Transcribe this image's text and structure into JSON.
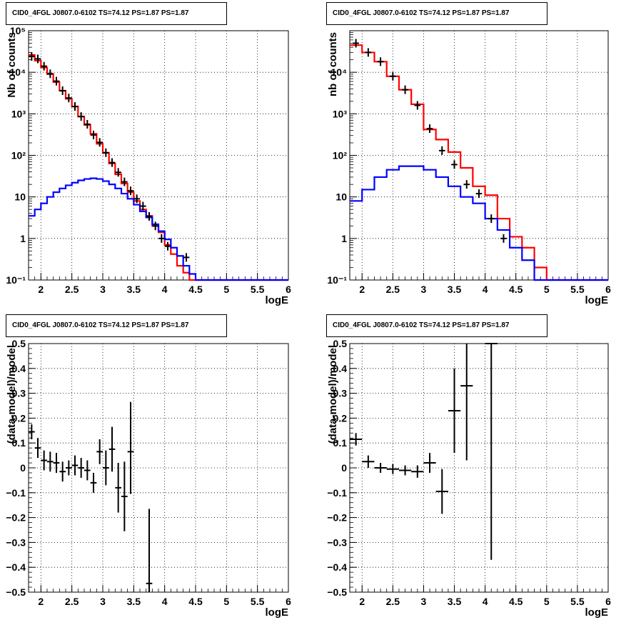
{
  "chart_data": [
    {
      "type": "histogram",
      "title": "CID0_4FGL J0807.0-6102 TS=74.12 PS=1.87 PS=1.87",
      "xlabel": "logE",
      "ylabel": "Nb of counts",
      "xlim": [
        1.8,
        6.0
      ],
      "ylim": [
        0.1,
        100000
      ],
      "yscale": "log",
      "grid": true,
      "x_ticks": [
        2,
        2.5,
        3,
        3.5,
        4,
        4.5,
        5,
        5.5,
        6
      ],
      "x_tick_labels": [
        "2",
        "2.5",
        "3",
        "3.5",
        "4",
        "4.5",
        "5",
        "5.5",
        "6"
      ],
      "y_ticks": [
        0.1,
        1,
        10,
        100,
        1000,
        10000,
        100000
      ],
      "y_tick_labels": [
        "10⁻¹",
        "1",
        "10",
        "10²",
        "10³",
        "10⁴",
        "10⁵"
      ],
      "series": [
        {
          "color": "#ff0000",
          "kind": "step",
          "x": [
            1.8,
            1.9,
            2.0,
            2.1,
            2.2,
            2.3,
            2.4,
            2.5,
            2.6,
            2.7,
            2.8,
            2.9,
            3.0,
            3.1,
            3.2,
            3.3,
            3.4,
            3.5,
            3.6,
            3.7,
            3.8,
            3.9,
            4.0,
            4.1,
            4.2,
            4.3,
            4.4,
            4.5,
            4.6,
            4.7,
            4.8,
            4.9,
            5.0,
            5.1,
            5.2,
            5.3,
            5.4,
            5.5,
            5.6,
            5.7,
            5.8,
            5.9
          ],
          "values": [
            26000,
            19000,
            13000,
            9000,
            5800,
            3600,
            2300,
            1500,
            860,
            540,
            330,
            190,
            115,
            64,
            35,
            21,
            13,
            8,
            5,
            3.5,
            2,
            1.4,
            0.7,
            0.42,
            0.22,
            0.15,
            0.1,
            0.1,
            0.1,
            0.1,
            0.1,
            0.1,
            0.1,
            0.1,
            0.1,
            0.1,
            0.1,
            0.1,
            0.1,
            0.1,
            0.1,
            0.1
          ]
        },
        {
          "color": "#0000ff",
          "kind": "step",
          "x": [
            1.8,
            1.9,
            2.0,
            2.1,
            2.2,
            2.3,
            2.4,
            2.5,
            2.6,
            2.7,
            2.8,
            2.9,
            3.0,
            3.1,
            3.2,
            3.3,
            3.4,
            3.5,
            3.6,
            3.7,
            3.8,
            3.9,
            4.0,
            4.1,
            4.2,
            4.3,
            4.4,
            4.5,
            4.6,
            4.7,
            4.8,
            4.9,
            5.0,
            5.1,
            5.2,
            5.3,
            5.4,
            5.5,
            5.6,
            5.7,
            5.8,
            5.9
          ],
          "values": [
            3.5,
            5,
            7,
            10,
            13,
            16,
            19,
            22,
            25,
            27,
            28,
            27,
            24,
            20,
            16,
            12,
            9,
            6.5,
            4.5,
            3.2,
            2.2,
            1.5,
            0.95,
            0.6,
            0.38,
            0.22,
            0.14,
            0.1,
            0.1,
            0.1,
            0.1,
            0.1,
            0.1,
            0.1,
            0.1,
            0.1,
            0.1,
            0.1,
            0.1,
            0.1,
            0.1,
            0.1
          ]
        },
        {
          "color": "#000000",
          "kind": "points",
          "x": [
            1.85,
            1.95,
            2.05,
            2.15,
            2.25,
            2.35,
            2.45,
            2.55,
            2.65,
            2.75,
            2.85,
            2.95,
            3.05,
            3.15,
            3.25,
            3.35,
            3.45,
            3.55,
            3.65,
            3.75,
            3.85,
            3.95,
            4.05,
            4.35
          ],
          "values": [
            24000,
            21000,
            14000,
            9200,
            6100,
            3600,
            2400,
            1500,
            860,
            560,
            310,
            205,
            116,
            67,
            39,
            23,
            14,
            9,
            6,
            3.4,
            2,
            1,
            0.65,
            0.35
          ],
          "yerr_lo": [
            0,
            0,
            0,
            0,
            0,
            0,
            0,
            0,
            0,
            0,
            0,
            0,
            0,
            0,
            0,
            0,
            0,
            0,
            0,
            0,
            0,
            0,
            0,
            0
          ],
          "yerr_hi": [
            0,
            0,
            0,
            0,
            0,
            0,
            0,
            0,
            0,
            0,
            0,
            0,
            0,
            0,
            0,
            0,
            0,
            0,
            0,
            0,
            0,
            0,
            0,
            0
          ]
        }
      ]
    },
    {
      "type": "histogram",
      "title": "CID0_4FGL J0807.0-6102 TS=74.12 PS=1.87 PS=1.87",
      "xlabel": "logE",
      "ylabel": "nb of counts",
      "xlim": [
        1.8,
        6.0
      ],
      "ylim": [
        0.1,
        100000
      ],
      "yscale": "log",
      "grid": true,
      "x_ticks": [
        2,
        2.5,
        3,
        3.5,
        4,
        4.5,
        5,
        5.5,
        6
      ],
      "x_tick_labels": [
        "2",
        "2.5",
        "3",
        "3.5",
        "4",
        "4.5",
        "5",
        "5.5",
        "6"
      ],
      "y_ticks": [
        0.1,
        1,
        10,
        100,
        1000,
        10000
      ],
      "y_tick_labels": [
        "10⁻¹",
        "1",
        "10",
        "10²",
        "10³",
        "10⁴"
      ],
      "series": [
        {
          "color": "#ff0000",
          "kind": "step",
          "x": [
            1.8,
            2.0,
            2.2,
            2.4,
            2.6,
            2.8,
            3.0,
            3.2,
            3.4,
            3.6,
            3.8,
            4.0,
            4.2,
            4.4,
            4.6,
            4.8,
            5.0,
            5.2,
            5.4,
            5.6,
            5.8
          ],
          "values": [
            45000,
            30000,
            18000,
            8000,
            3800,
            1700,
            420,
            240,
            120,
            50,
            18,
            11,
            3,
            1.1,
            0.6,
            0.2,
            0.1,
            0.1,
            0.1,
            0.1,
            0.1
          ]
        },
        {
          "color": "#0000ff",
          "kind": "step",
          "x": [
            1.8,
            2.0,
            2.2,
            2.4,
            2.6,
            2.8,
            3.0,
            3.2,
            3.4,
            3.6,
            3.8,
            4.0,
            4.2,
            4.4,
            4.6,
            4.8,
            5.0,
            5.2,
            5.4,
            5.6,
            5.8
          ],
          "values": [
            8,
            15,
            30,
            45,
            55,
            55,
            45,
            30,
            18,
            10,
            7,
            3,
            1.6,
            0.6,
            0.3,
            0.1,
            0.1,
            0.1,
            0.1,
            0.1,
            0.1
          ]
        },
        {
          "color": "#000000",
          "kind": "points",
          "x": [
            1.9,
            2.1,
            2.3,
            2.5,
            2.7,
            2.9,
            3.1,
            3.3,
            3.5,
            3.7,
            3.9,
            4.1,
            4.3
          ],
          "values": [
            50000,
            30000,
            18000,
            8000,
            3800,
            1600,
            440,
            130,
            60,
            20,
            12,
            3,
            1
          ],
          "yerr_lo": [
            0,
            0,
            0,
            0,
            0,
            0,
            0,
            0,
            0,
            0,
            0,
            0,
            0
          ],
          "yerr_hi": [
            0,
            0,
            0,
            0,
            0,
            0,
            0,
            0,
            0,
            0,
            0,
            0,
            0
          ]
        }
      ]
    },
    {
      "type": "scatter",
      "title": "CID0_4FGL J0807.0-6102 TS=74.12 PS=1.87 PS=1.87",
      "xlabel": "logE",
      "ylabel": "(data-model)/model",
      "xlim": [
        1.8,
        6.0
      ],
      "ylim": [
        -0.5,
        0.5
      ],
      "yscale": "linear",
      "grid": true,
      "x_ticks": [
        2,
        2.5,
        3,
        3.5,
        4,
        4.5,
        5,
        5.5,
        6
      ],
      "x_tick_labels": [
        "2",
        "2.5",
        "3",
        "3.5",
        "4",
        "4.5",
        "5",
        "5.5",
        "6"
      ],
      "y_ticks": [
        -0.5,
        -0.4,
        -0.3,
        -0.2,
        -0.1,
        0,
        0.1,
        0.2,
        0.3,
        0.4,
        0.5
      ],
      "y_tick_labels": [
        "−0.5",
        "−0.4",
        "−0.3",
        "−0.2",
        "−0.1",
        "0",
        "0.1",
        "0.2",
        "0.3",
        "0.4",
        "0.5"
      ],
      "series": [
        {
          "color": "#000000",
          "kind": "points",
          "x": [
            1.85,
            1.95,
            2.05,
            2.15,
            2.25,
            2.35,
            2.45,
            2.55,
            2.65,
            2.75,
            2.85,
            2.95,
            3.05,
            3.15,
            3.25,
            3.35,
            3.45,
            3.75
          ],
          "values": [
            0.145,
            0.08,
            0.03,
            0.025,
            0.02,
            -0.015,
            0.0,
            0.01,
            0.0,
            -0.01,
            -0.06,
            0.065,
            0.0,
            0.075,
            -0.08,
            -0.115,
            0.065,
            -0.465
          ],
          "yerr_lo": [
            0.03,
            0.04,
            0.04,
            0.04,
            0.04,
            0.04,
            0.03,
            0.04,
            0.04,
            0.04,
            0.04,
            0.05,
            0.07,
            0.09,
            0.1,
            0.14,
            0.17,
            0.3
          ],
          "yerr_hi": [
            0.03,
            0.04,
            0.04,
            0.04,
            0.04,
            0.04,
            0.03,
            0.04,
            0.04,
            0.04,
            0.04,
            0.05,
            0.07,
            0.09,
            0.1,
            0.14,
            0.2,
            0.3
          ],
          "xerr": 0.05
        }
      ]
    },
    {
      "type": "scatter",
      "title": "CID0_4FGL J0807.0-6102 TS=74.12 PS=1.87 PS=1.87",
      "xlabel": "logE",
      "ylabel": "(data-model)/model",
      "xlim": [
        1.8,
        6.0
      ],
      "ylim": [
        -0.5,
        0.5
      ],
      "yscale": "linear",
      "grid": true,
      "x_ticks": [
        2,
        2.5,
        3,
        3.5,
        4,
        4.5,
        5,
        5.5,
        6
      ],
      "x_tick_labels": [
        "2",
        "2.5",
        "3",
        "3.5",
        "4",
        "4.5",
        "5",
        "5.5",
        "6"
      ],
      "y_ticks": [
        -0.5,
        -0.4,
        -0.3,
        -0.2,
        -0.1,
        0,
        0.1,
        0.2,
        0.3,
        0.4,
        0.5
      ],
      "y_tick_labels": [
        "−0.5",
        "−0.4",
        "−0.3",
        "−0.2",
        "−0.1",
        "0",
        "0.1",
        "0.2",
        "0.3",
        "0.4",
        "0.5"
      ],
      "series": [
        {
          "color": "#000000",
          "kind": "points",
          "x": [
            1.9,
            2.1,
            2.3,
            2.5,
            2.7,
            2.9,
            3.1,
            3.3,
            3.5,
            3.7,
            4.1
          ],
          "values": [
            0.115,
            0.025,
            0.0,
            -0.005,
            -0.01,
            -0.015,
            0.02,
            -0.095,
            0.23,
            0.33,
            0.5
          ],
          "yerr_lo": [
            0.025,
            0.025,
            0.02,
            0.02,
            0.02,
            0.025,
            0.04,
            0.09,
            0.17,
            0.3,
            0.87
          ],
          "yerr_hi": [
            0.025,
            0.025,
            0.02,
            0.02,
            0.02,
            0.025,
            0.04,
            0.09,
            0.17,
            0.3,
            0.0
          ],
          "xerr": 0.1
        }
      ]
    }
  ]
}
